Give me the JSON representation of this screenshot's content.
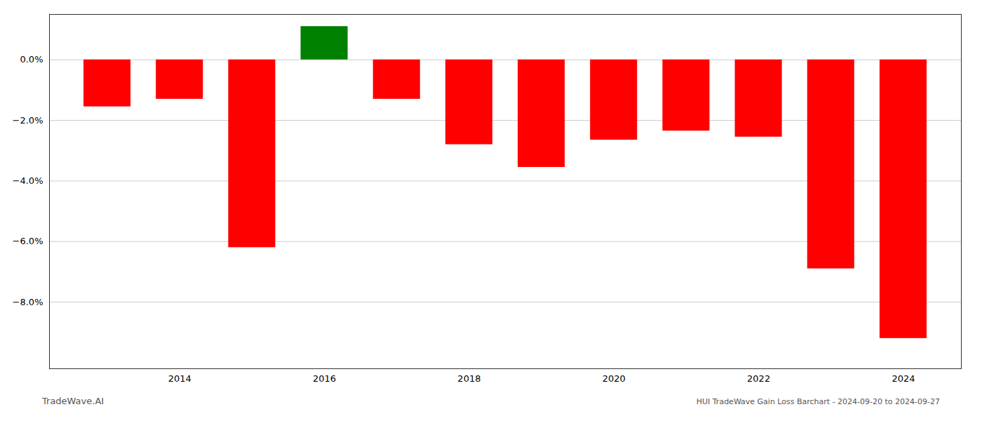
{
  "chart_data": {
    "type": "bar",
    "x": [
      2013,
      2014,
      2015,
      2016,
      2017,
      2018,
      2019,
      2020,
      2021,
      2022,
      2023,
      2024
    ],
    "values": [
      -1.55,
      -1.3,
      -6.2,
      1.1,
      -1.3,
      -2.8,
      -3.55,
      -2.65,
      -2.35,
      -2.55,
      -6.9,
      -9.2
    ],
    "colors": [
      "#ff0000",
      "#ff0000",
      "#ff0000",
      "#008000",
      "#ff0000",
      "#ff0000",
      "#ff0000",
      "#ff0000",
      "#ff0000",
      "#ff0000",
      "#ff0000",
      "#ff0000"
    ],
    "xlim": [
      2012.2,
      2024.8
    ],
    "xticks": [
      2014,
      2016,
      2018,
      2020,
      2022,
      2024
    ],
    "ylim": [
      -10.2,
      1.5
    ],
    "yticks": [
      {
        "value": 0.0,
        "label": "0.0%"
      },
      {
        "value": -2.0,
        "label": "−2.0%"
      },
      {
        "value": -4.0,
        "label": "−4.0%"
      },
      {
        "value": -6.0,
        "label": "−6.0%"
      },
      {
        "value": -8.0,
        "label": "−8.0%"
      }
    ],
    "grid": true,
    "annotations": [
      "TradeWave.AI",
      "HUI TradeWave Gain Loss Barchart - 2024-09-20 to 2024-09-27"
    ]
  }
}
